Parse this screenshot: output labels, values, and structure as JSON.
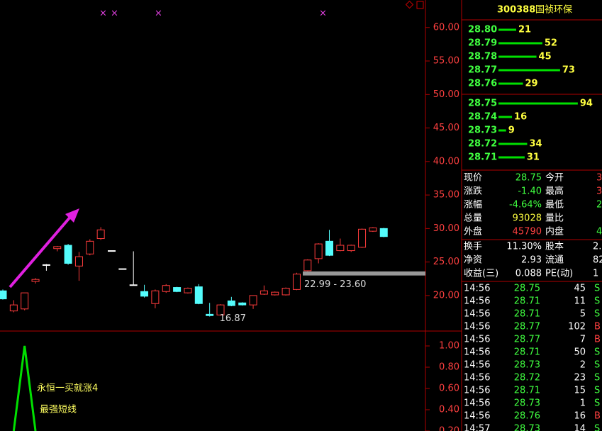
{
  "chart": {
    "type": "candlestick",
    "ylim": [
      14.7,
      64.1
    ],
    "yticks": [
      {
        "value": 20,
        "label": "20.00"
      },
      {
        "value": 25,
        "label": "25.00"
      },
      {
        "value": 30,
        "label": "30.00"
      },
      {
        "value": 35,
        "label": "35.00"
      },
      {
        "value": 40,
        "label": "40.00"
      },
      {
        "value": 45,
        "label": "45.00"
      },
      {
        "value": 50,
        "label": "50.00"
      },
      {
        "value": 55,
        "label": "55.00"
      },
      {
        "value": 60,
        "label": "60.00"
      }
    ],
    "open": [
      20.7,
      17.7,
      18.0,
      22.1,
      24.6,
      27.0,
      27.5,
      24.4,
      26.2,
      28.5,
      26.7,
      24.0,
      21.6,
      20.6,
      18.8,
      20.6,
      21.2,
      20.4,
      21.3,
      17.2,
      17.1,
      19.2,
      18.9,
      18.6,
      20.2,
      20.1,
      20.1,
      20.9,
      23.7,
      25.5,
      28.1,
      26.7,
      26.7,
      27.2,
      29.6,
      30.0
    ],
    "close": [
      19.5,
      18.6,
      20.4,
      22.4,
      24.6,
      27.3,
      24.8,
      25.8,
      28.1,
      29.8,
      26.7,
      24.0,
      21.6,
      19.9,
      20.7,
      21.5,
      20.6,
      21.1,
      18.8,
      17.0,
      18.6,
      18.5,
      18.6,
      20.0,
      20.7,
      20.5,
      21.1,
      23.2,
      25.3,
      27.7,
      26.0,
      27.5,
      27.5,
      29.9,
      30.1,
      28.8
    ],
    "high": [
      20.9,
      19.3,
      20.4,
      22.6,
      24.7,
      27.4,
      27.7,
      26.5,
      28.4,
      30.2,
      26.7,
      24.0,
      26.6,
      21.6,
      20.9,
      21.7,
      21.3,
      21.2,
      21.7,
      18.9,
      18.7,
      19.8,
      19.0,
      20.0,
      21.5,
      20.6,
      21.2,
      23.4,
      25.4,
      27.8,
      29.8,
      28.5,
      27.6,
      30.0,
      30.2,
      30.1
    ],
    "low": [
      19.4,
      17.5,
      17.8,
      21.8,
      23.7,
      26.6,
      24.6,
      22.2,
      26.0,
      28.3,
      26.7,
      24.0,
      21.6,
      19.7,
      18.1,
      20.4,
      20.5,
      20.3,
      18.7,
      16.87,
      17.0,
      18.4,
      18.5,
      18.0,
      20.1,
      20.0,
      20.0,
      20.8,
      23.6,
      24.8,
      25.9,
      26.6,
      26.5,
      27.1,
      29.5,
      28.7
    ],
    "low_label": "16.87",
    "low_index": 19,
    "range": {
      "low": 22.99,
      "high": 23.6,
      "label": "22.99 - 23.60"
    },
    "up_color": "#ff3c3c",
    "down_color": "#54fcfc"
  },
  "indicator": {
    "type": "line",
    "texts": [
      "永恒一买就涨4",
      "最强短线"
    ],
    "color": "#00e000",
    "ylim": [
      0.2,
      1.12
    ],
    "yticks": [
      {
        "value": 1,
        "label": "1.00"
      },
      {
        "value": 0.8,
        "label": "0.80"
      },
      {
        "value": 0.6,
        "label": "0.60"
      },
      {
        "value": 0.4,
        "label": "0.40"
      },
      {
        "value": 0.2,
        "label": "0.20"
      }
    ],
    "values": [
      null,
      0.2,
      1.0,
      0.2,
      null,
      null,
      null,
      null,
      null,
      null,
      null,
      null,
      null,
      null,
      null,
      null,
      null,
      null,
      null,
      null,
      null,
      null,
      null,
      null,
      null,
      null,
      null,
      null,
      null,
      null,
      null,
      null,
      null,
      null,
      null,
      null
    ]
  },
  "quote": {
    "code": "300388",
    "name": "国祯环保",
    "asks": [
      {
        "price": "28.80",
        "volume": 21
      },
      {
        "price": "28.79",
        "volume": 52
      },
      {
        "price": "28.78",
        "volume": 45
      },
      {
        "price": "28.77",
        "volume": 73
      },
      {
        "price": "28.76",
        "volume": 29
      }
    ],
    "bids": [
      {
        "price": "28.75",
        "volume": 94
      },
      {
        "price": "28.74",
        "volume": 16
      },
      {
        "price": "28.73",
        "volume": 9
      },
      {
        "price": "28.72",
        "volume": 34
      },
      {
        "price": "28.71",
        "volume": 31
      }
    ],
    "stats": [
      [
        "现价",
        "28.75",
        "#40ff40",
        "今开",
        "3",
        "#ff4040"
      ],
      [
        "涨跌",
        "-1.40",
        "#40ff40",
        "最高",
        "3",
        "#ff4040"
      ],
      [
        "涨幅",
        "-4.64%",
        "#40ff40",
        "最低",
        "2",
        "#40ff40"
      ],
      [
        "总量",
        "93028",
        "#ffff40",
        "量比",
        "",
        "#ffffff"
      ],
      [
        "外盘",
        "45790",
        "#ff4040",
        "内盘",
        "4",
        "#40ff40"
      ]
    ],
    "stats2": [
      [
        "换手",
        "11.30%",
        "股本",
        "2."
      ],
      [
        "净资",
        "2.93",
        "流通",
        "82"
      ],
      [
        "收益(三)",
        "0.088",
        "PE(动)",
        "1"
      ]
    ],
    "trades": [
      [
        "14:56",
        "28.75",
        "45",
        "S"
      ],
      [
        "14:56",
        "28.71",
        "11",
        "S"
      ],
      [
        "14:56",
        "28.71",
        "5",
        "S"
      ],
      [
        "14:56",
        "28.77",
        "102",
        "B"
      ],
      [
        "14:56",
        "28.77",
        "7",
        "B"
      ],
      [
        "14:56",
        "28.71",
        "50",
        "S"
      ],
      [
        "14:56",
        "28.73",
        "2",
        "S"
      ],
      [
        "14:56",
        "28.72",
        "23",
        "S"
      ],
      [
        "14:56",
        "28.71",
        "15",
        "S"
      ],
      [
        "14:56",
        "28.73",
        "1",
        "S"
      ],
      [
        "14:56",
        "28.76",
        "16",
        "B"
      ],
      [
        "14:57",
        "28.73",
        "14",
        "S"
      ]
    ]
  }
}
